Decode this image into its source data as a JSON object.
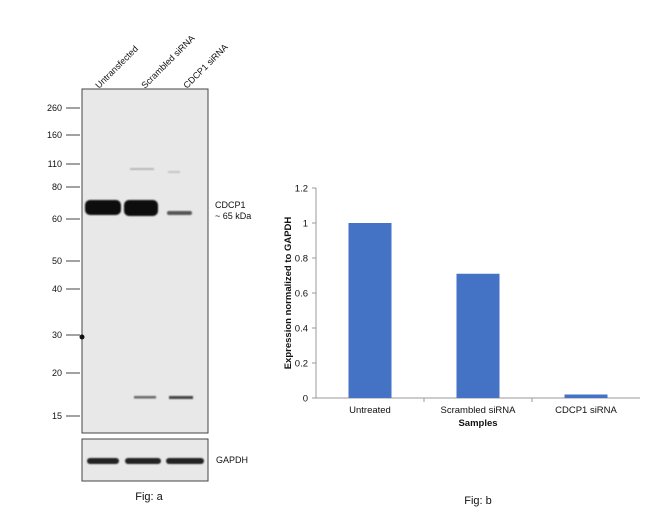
{
  "figure_a": {
    "lanes": [
      "Untransfected",
      "Scrambled siRNA",
      "CDCP1 siRNA"
    ],
    "markers": [
      "260",
      "160",
      "110",
      "80",
      "60",
      "50",
      "40",
      "30",
      "20",
      "15"
    ],
    "band_label_line1": "CDCP1",
    "band_label_line2": "~ 65 kDa",
    "loading_label": "GAPDH",
    "caption": "Fig: a"
  },
  "figure_b": {
    "caption": "Fig: b"
  },
  "chart_data": {
    "type": "bar",
    "categories": [
      "Untreated",
      "Scrambled siRNA",
      "CDCP1 siRNA"
    ],
    "values": [
      1.0,
      0.71,
      0.02
    ],
    "xlabel": "Samples",
    "ylabel": "Expression normalized to GAPDH",
    "ylim": [
      0,
      1.2
    ],
    "yticks": [
      "0",
      "0.2",
      "0.4",
      "0.6",
      "0.8",
      "1",
      "1.2"
    ],
    "bar_color": "#4472c4",
    "grid": false,
    "legend": "none"
  }
}
